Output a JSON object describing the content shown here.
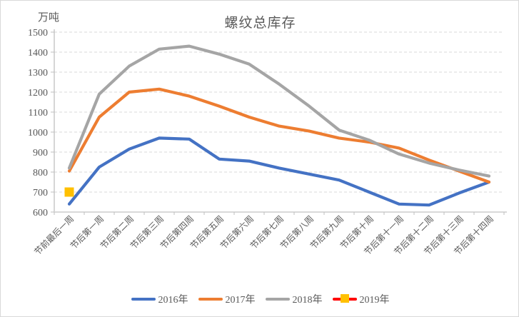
{
  "header": {
    "unit_label": "万吨",
    "title": "螺纹总库存"
  },
  "chart_data": {
    "type": "line",
    "title": "螺纹总库存",
    "ylabel": "万吨",
    "ylim": [
      600,
      1500
    ],
    "ytick_step": 100,
    "yticks": [
      600,
      700,
      800,
      900,
      1000,
      1100,
      1200,
      1300,
      1400,
      1500
    ],
    "grid": "horizontal-dashed",
    "legend_position": "bottom",
    "axis_color": "#bfbfbf",
    "grid_color": "#d9d9d9",
    "text_color": "#595959",
    "categories": [
      "节前最后一周",
      "节后第一周",
      "节后第二周",
      "节后第三周",
      "节后第四周",
      "节后第五周",
      "节后第六周",
      "节后第七周",
      "节后第八周",
      "节后第九周",
      "节后第十周",
      "节后第十一周",
      "节后第十二周",
      "节后第十三周",
      "节后第十四周"
    ],
    "series": [
      {
        "name": "2016年",
        "color": "#4472C4",
        "values": [
          640,
          825,
          915,
          970,
          965,
          865,
          855,
          820,
          790,
          760,
          700,
          640,
          635,
          695,
          750
        ]
      },
      {
        "name": "2017年",
        "color": "#ED7D31",
        "values": [
          805,
          1075,
          1200,
          1215,
          1180,
          1130,
          1075,
          1030,
          1005,
          970,
          950,
          920,
          860,
          805,
          750
        ]
      },
      {
        "name": "2018年",
        "color": "#A5A5A5",
        "values": [
          820,
          1190,
          1330,
          1415,
          1430,
          1390,
          1340,
          1240,
          1130,
          1010,
          960,
          890,
          845,
          810,
          780
        ]
      },
      {
        "name": "2019年",
        "color": "#FF0000",
        "marker": "square",
        "marker_color": "#FFC000",
        "values": [
          700,
          null,
          null,
          null,
          null,
          null,
          null,
          null,
          null,
          null,
          null,
          null,
          null,
          null,
          null
        ]
      }
    ]
  }
}
